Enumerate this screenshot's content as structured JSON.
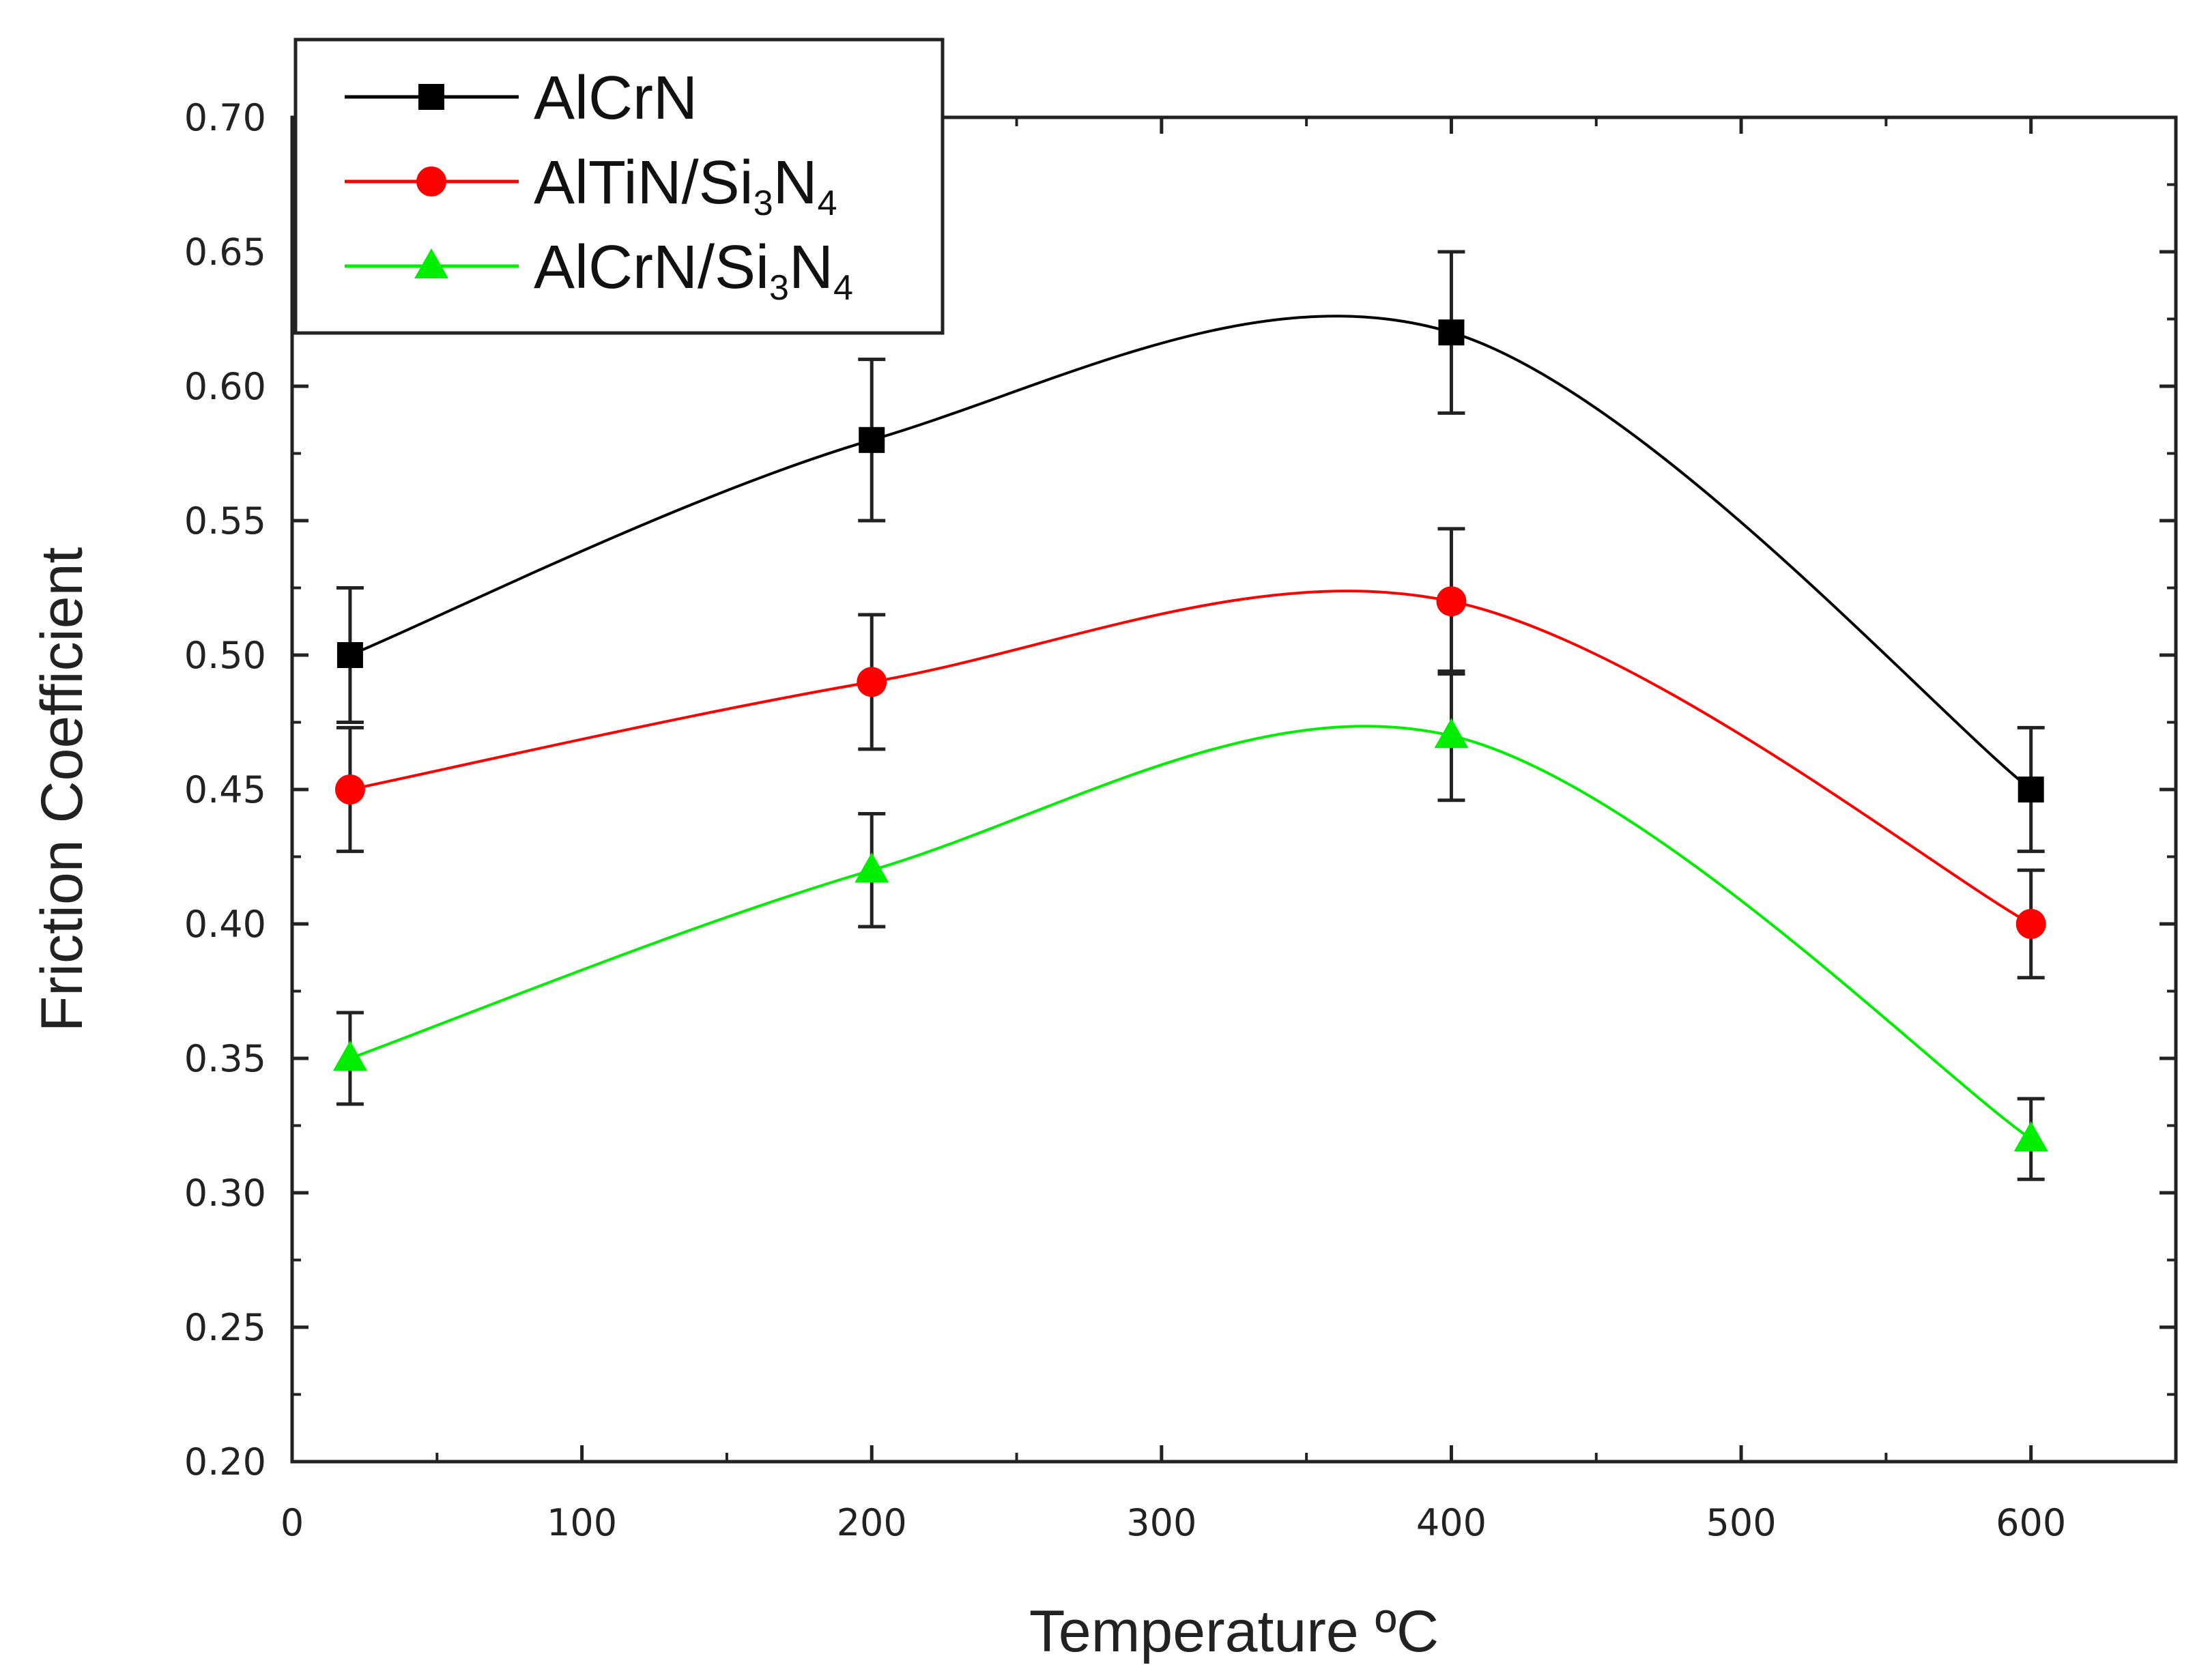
{
  "chart_data": {
    "type": "line",
    "title": "",
    "xlabel": "Temperature ºC",
    "ylabel": "Friction Coefficient",
    "xlim": [
      0,
      650
    ],
    "ylim": [
      0.2,
      0.7
    ],
    "x_ticks": [
      0,
      100,
      200,
      300,
      400,
      500,
      600
    ],
    "x_tick_labels": [
      "0",
      "100",
      "200",
      "300",
      "400",
      "500",
      "600"
    ],
    "y_ticks": [
      0.2,
      0.25,
      0.3,
      0.35,
      0.4,
      0.45,
      0.5,
      0.55,
      0.6,
      0.65,
      0.7
    ],
    "y_tick_labels": [
      "0.20",
      "0.25",
      "0.30",
      "0.35",
      "0.40",
      "0.45",
      "0.50",
      "0.55",
      "0.60",
      "0.65",
      "0.70"
    ],
    "grid": false,
    "legend_position": "top-left",
    "x": [
      20,
      200,
      400,
      600
    ],
    "series": [
      {
        "name": "AlCrN",
        "legend_parts": [
          {
            "text": "AlCrN",
            "sub": false
          }
        ],
        "color": "#000000",
        "marker": "square",
        "values": [
          0.5,
          0.58,
          0.62,
          0.45
        ],
        "errors": [
          0.025,
          0.03,
          0.03,
          0.023
        ]
      },
      {
        "name": "AlTiN/Si3N4",
        "legend_parts": [
          {
            "text": "AlTiN/Si",
            "sub": false
          },
          {
            "text": "3",
            "sub": true
          },
          {
            "text": "N",
            "sub": false
          },
          {
            "text": "4",
            "sub": true
          }
        ],
        "color": "#ff0000",
        "marker": "circle",
        "values": [
          0.45,
          0.49,
          0.52,
          0.4
        ],
        "errors": [
          0.023,
          0.025,
          0.027,
          0.02
        ]
      },
      {
        "name": "AlCrN/Si3N4",
        "legend_parts": [
          {
            "text": "AlCrN/Si",
            "sub": false
          },
          {
            "text": "3",
            "sub": true
          },
          {
            "text": "N",
            "sub": false
          },
          {
            "text": "4",
            "sub": true
          }
        ],
        "color": "#00ee00",
        "marker": "triangle",
        "values": [
          0.35,
          0.42,
          0.47,
          0.32
        ],
        "errors": [
          0.017,
          0.021,
          0.024,
          0.015
        ]
      }
    ]
  }
}
